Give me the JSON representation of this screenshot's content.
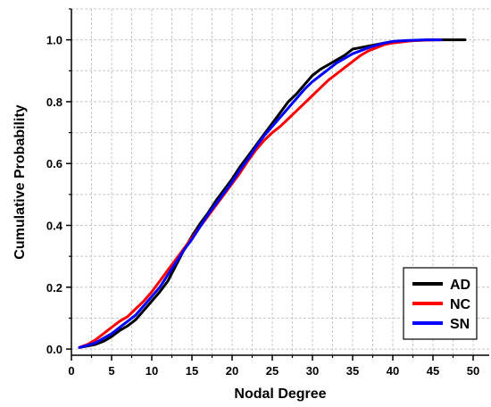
{
  "chart_data": {
    "type": "line",
    "title": "",
    "xlabel": "Nodal Degree",
    "ylabel": "Cumulative Probability",
    "xlim": [
      0,
      52
    ],
    "ylim": [
      -0.02,
      1.1
    ],
    "xticks": [
      "0",
      "5",
      "10",
      "15",
      "20",
      "25",
      "30",
      "35",
      "40",
      "45",
      "50"
    ],
    "yticks": [
      "0.0",
      "0.2",
      "0.4",
      "0.6",
      "0.8",
      "1.0"
    ],
    "grid": true,
    "legend_position": "bottom-right",
    "series": [
      {
        "name": "AD",
        "color": "#000000",
        "x": [
          1,
          2,
          3,
          4,
          5,
          6,
          7,
          8,
          9,
          10,
          11,
          12,
          13,
          14,
          15,
          16,
          17,
          18,
          19,
          20,
          21,
          22,
          23,
          24,
          25,
          26,
          27,
          28,
          29,
          30,
          31,
          32,
          33,
          34,
          35,
          36,
          37,
          38,
          39,
          40,
          41,
          42,
          43,
          44,
          45,
          46,
          47,
          48,
          49
        ],
        "y": [
          0.005,
          0.01,
          0.015,
          0.025,
          0.04,
          0.06,
          0.075,
          0.095,
          0.125,
          0.155,
          0.185,
          0.22,
          0.27,
          0.32,
          0.365,
          0.405,
          0.44,
          0.48,
          0.515,
          0.55,
          0.59,
          0.625,
          0.66,
          0.695,
          0.73,
          0.765,
          0.8,
          0.825,
          0.855,
          0.885,
          0.905,
          0.92,
          0.935,
          0.95,
          0.97,
          0.975,
          0.98,
          0.985,
          0.99,
          0.993,
          0.995,
          0.997,
          0.998,
          0.999,
          1.0,
          1.0,
          1.0,
          1.0,
          1.0
        ]
      },
      {
        "name": "NC",
        "color": "#ff0000",
        "x": [
          1,
          2,
          3,
          4,
          5,
          6,
          7,
          8,
          9,
          10,
          11,
          12,
          13,
          14,
          15,
          16,
          17,
          18,
          19,
          20,
          21,
          22,
          23,
          24,
          25,
          26,
          27,
          28,
          29,
          30,
          31,
          32,
          33,
          34,
          35,
          36,
          37,
          38,
          39,
          40,
          41,
          42,
          43,
          44,
          45,
          46
        ],
        "y": [
          0.005,
          0.015,
          0.03,
          0.05,
          0.07,
          0.09,
          0.105,
          0.13,
          0.155,
          0.185,
          0.22,
          0.255,
          0.29,
          0.325,
          0.36,
          0.395,
          0.43,
          0.465,
          0.5,
          0.535,
          0.57,
          0.61,
          0.645,
          0.675,
          0.7,
          0.72,
          0.745,
          0.77,
          0.795,
          0.82,
          0.845,
          0.87,
          0.89,
          0.91,
          0.93,
          0.95,
          0.965,
          0.975,
          0.985,
          0.99,
          0.993,
          0.996,
          0.998,
          0.999,
          1.0,
          1.0
        ]
      },
      {
        "name": "SN",
        "color": "#0000ff",
        "x": [
          1,
          2,
          3,
          4,
          5,
          6,
          7,
          8,
          9,
          10,
          11,
          12,
          13,
          14,
          15,
          16,
          17,
          18,
          19,
          20,
          21,
          22,
          23,
          24,
          25,
          26,
          27,
          28,
          29,
          30,
          31,
          32,
          33,
          34,
          35,
          36,
          37,
          38,
          39,
          40,
          41,
          42,
          43,
          44,
          45,
          46
        ],
        "y": [
          0.005,
          0.012,
          0.02,
          0.035,
          0.05,
          0.07,
          0.09,
          0.11,
          0.14,
          0.17,
          0.2,
          0.24,
          0.28,
          0.32,
          0.355,
          0.395,
          0.435,
          0.47,
          0.505,
          0.54,
          0.58,
          0.615,
          0.655,
          0.69,
          0.72,
          0.75,
          0.78,
          0.81,
          0.84,
          0.865,
          0.885,
          0.905,
          0.925,
          0.94,
          0.955,
          0.965,
          0.975,
          0.983,
          0.99,
          0.995,
          0.997,
          0.998,
          0.999,
          1.0,
          1.0,
          1.0
        ]
      }
    ]
  }
}
